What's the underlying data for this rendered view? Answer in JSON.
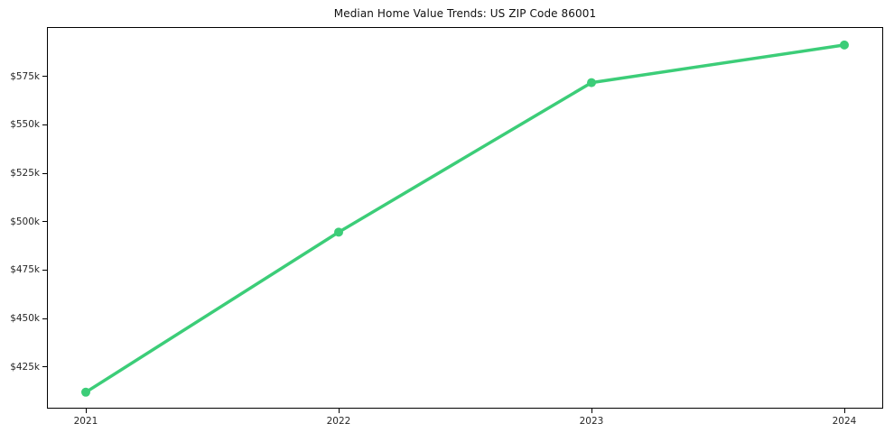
{
  "chart_data": {
    "type": "line",
    "title": "Median Home Value Trends: US ZIP Code 86001",
    "categories": [
      "2021",
      "2022",
      "2023",
      "2024"
    ],
    "series": [
      {
        "name": "Median home value",
        "values": [
          412000,
          494600,
          571800,
          591200
        ],
        "color": "#3ccd78"
      }
    ],
    "xlabel": "",
    "ylabel": "",
    "yticks": [
      {
        "label": "$425k",
        "value": 425000
      },
      {
        "label": "$450k",
        "value": 450000
      },
      {
        "label": "$475k",
        "value": 475000
      },
      {
        "label": "$500k",
        "value": 500000
      },
      {
        "label": "$525k",
        "value": 525000
      },
      {
        "label": "$550k",
        "value": 550000
      },
      {
        "label": "$575k",
        "value": 575000
      }
    ],
    "ylim": [
      404000,
      600000
    ],
    "x_margin_frac": 0.05,
    "grid": false,
    "legend": "none",
    "background": "#ffffff",
    "spine_color": "#000000",
    "text_color": "#262626"
  }
}
